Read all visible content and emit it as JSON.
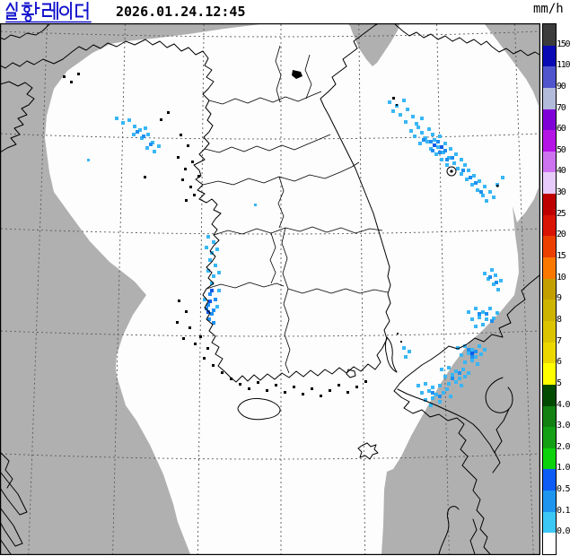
{
  "header": {
    "title": "실황 레이더",
    "title_color": "#1212cc",
    "timestamp": "2026.01.24.12:45"
  },
  "legend": {
    "unit": "mm/h",
    "tick_labels": [
      "150",
      "110",
      "90",
      "70",
      "60",
      "50",
      "40",
      "30",
      "25",
      "20",
      "15",
      "10",
      "9",
      "8",
      "7",
      "6",
      "5",
      "4.0",
      "3.0",
      "2.0",
      "1.0",
      "0.5",
      "0.1",
      "0.0"
    ],
    "segment_colors": [
      "#3c3c3c",
      "#0a0ab4",
      "#5055cd",
      "#b3bbdb",
      "#8000d8",
      "#b414e6",
      "#cd73f0",
      "#e7cbfa",
      "#be0000",
      "#d91405",
      "#eb4000",
      "#fa7800",
      "#c3a000",
      "#ccb400",
      "#dcc400",
      "#ecd800",
      "#ffff00",
      "#004b00",
      "#128112",
      "#14a014",
      "#0cd20c",
      "#0c5cf5",
      "#1e96f0",
      "#3cc8f5",
      "#ffffff"
    ]
  },
  "map": {
    "colors": {
      "sea_outside_radar": "#b0b0b0",
      "radar_coverage": "#fdfdfd",
      "coastline": "#000000",
      "grid": "#5a5a5a",
      "precip_light": "#38b6f6",
      "precip_medium": "#1e8ff0",
      "precip_dark": "#0a5ce8"
    },
    "precipitation_areas": [
      {
        "region": "East Sea off Gangwon/Gyeongbuk coast (diagonal band)",
        "intensity_mm_h": "0.1 - 1.0"
      },
      {
        "region": "Yellow Sea west of Hwanghae (small streak)",
        "intensity_mm_h": "0.1 - 0.5"
      },
      {
        "region": "Southwest coast of Jeolla (narrow north-south band)",
        "intensity_mm_h": "0.1 - 1.0"
      },
      {
        "region": "Offshore east of Pohang",
        "intensity_mm_h": "0.1 - 0.5"
      },
      {
        "region": "Korea Strait / northwest coast of Japan",
        "intensity_mm_h": "0.1 - 0.5"
      }
    ]
  }
}
